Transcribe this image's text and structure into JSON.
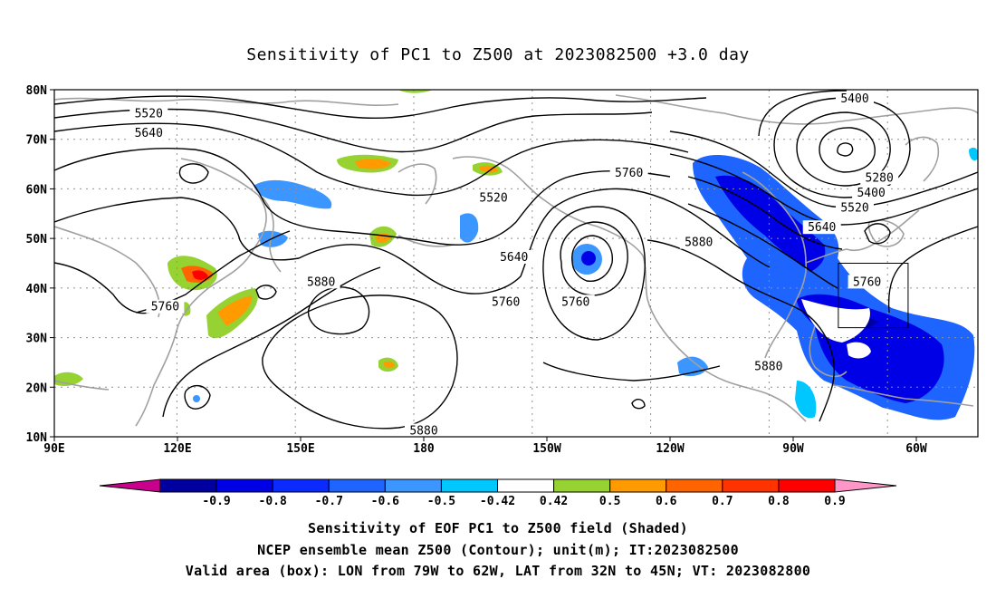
{
  "title": "Sensitivity of PC1 to Z500 at 2023082500 +3.0 day",
  "map": {
    "lon_ticks": [
      "90E",
      "120E",
      "150E",
      "180",
      "150W",
      "120W",
      "90W",
      "60W"
    ],
    "lat_ticks": [
      "80N",
      "70N",
      "60N",
      "50N",
      "40N",
      "30N",
      "20N",
      "10N"
    ],
    "lon_range": [
      "90E",
      "45W"
    ],
    "lat_range": [
      "10N",
      "80N"
    ],
    "grid": "dotted",
    "contour_labels": [
      {
        "text": "5520",
        "lon": 113,
        "lat": 75
      },
      {
        "text": "5640",
        "lon": 113,
        "lat": 71
      },
      {
        "text": "5520",
        "lon": -163,
        "lat": 58
      },
      {
        "text": "5640",
        "lon": -158,
        "lat": 46
      },
      {
        "text": "5760",
        "lon": -130,
        "lat": 63
      },
      {
        "text": "5880",
        "lon": -113,
        "lat": 49
      },
      {
        "text": "5880",
        "lon": 155,
        "lat": 41
      },
      {
        "text": "5760",
        "lon": -160,
        "lat": 37
      },
      {
        "text": "5760",
        "lon": -143,
        "lat": 37
      },
      {
        "text": "5760",
        "lon": 117,
        "lat": 36
      },
      {
        "text": "5880",
        "lon": -96,
        "lat": 24
      },
      {
        "text": "5880",
        "lon": 180,
        "lat": 11
      },
      {
        "text": "5400",
        "lon": -75,
        "lat": 78
      },
      {
        "text": "5280",
        "lon": -69,
        "lat": 62
      },
      {
        "text": "5400",
        "lon": -71,
        "lat": 59
      },
      {
        "text": "5520",
        "lon": -75,
        "lat": 56
      },
      {
        "text": "5640",
        "lon": -83,
        "lat": 52
      },
      {
        "text": "5760",
        "lon": -72,
        "lat": 41
      }
    ],
    "valid_box": {
      "lon_min": -79,
      "lon_max": -62,
      "lat_min": 32,
      "lat_max": 45
    }
  },
  "colorbar": {
    "labels": [
      "-0.9",
      "-0.8",
      "-0.7",
      "-0.6",
      "-0.5",
      "-0.42",
      "0.42",
      "0.5",
      "0.6",
      "0.7",
      "0.8",
      "0.9"
    ],
    "colors": [
      "#0000a0",
      "#0000e6",
      "#0a2aff",
      "#1e64ff",
      "#3c96ff",
      "#00c8ff",
      "#ffffff",
      "#96d232",
      "#ff9a00",
      "#ff6400",
      "#ff3200",
      "#ff0000"
    ],
    "low_end_color": "#c8008c",
    "high_end_color": "#ff96c8"
  },
  "captions": {
    "line1": "Sensitivity of EOF PC1 to Z500 field (Shaded)",
    "line2": "NCEP ensemble mean Z500 (Contour); unit(m); IT:2023082500",
    "line3": "Valid area (box): LON from 79W to 62W, LAT from 32N to 45N; VT: 2023082800"
  }
}
